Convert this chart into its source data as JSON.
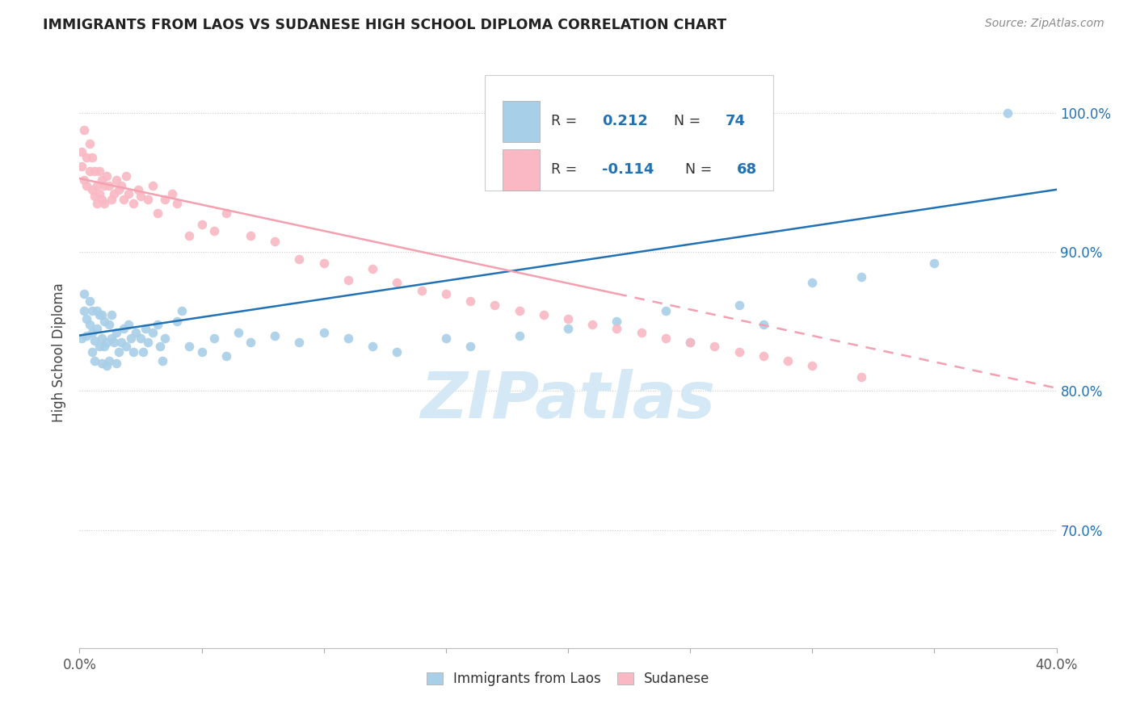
{
  "title": "IMMIGRANTS FROM LAOS VS SUDANESE HIGH SCHOOL DIPLOMA CORRELATION CHART",
  "source": "Source: ZipAtlas.com",
  "ylabel": "High School Diploma",
  "ytick_labels": [
    "70.0%",
    "80.0%",
    "90.0%",
    "100.0%"
  ],
  "ytick_values": [
    0.7,
    0.8,
    0.9,
    1.0
  ],
  "xlim": [
    0.0,
    0.4
  ],
  "ylim": [
    0.615,
    1.04
  ],
  "blue_R": 0.212,
  "blue_N": 74,
  "pink_R": -0.114,
  "pink_N": 68,
  "blue_color": "#a8cfe8",
  "pink_color": "#f9b8c4",
  "blue_line_color": "#2171b5",
  "pink_line_color": "#f4a0b0",
  "legend_text_color": "#2171b5",
  "title_color": "#222222",
  "source_color": "#888888",
  "watermark_color": "#d5e8f5",
  "blue_line_y0": 0.84,
  "blue_line_y1": 0.945,
  "pink_line_y0": 0.953,
  "pink_line_y1_solid": 0.87,
  "pink_line_x_solid_end": 0.22,
  "pink_line_y1_dash": 0.8,
  "blue_x": [
    0.001,
    0.002,
    0.002,
    0.003,
    0.003,
    0.004,
    0.004,
    0.005,
    0.005,
    0.005,
    0.006,
    0.006,
    0.007,
    0.007,
    0.008,
    0.008,
    0.009,
    0.009,
    0.009,
    0.01,
    0.01,
    0.011,
    0.011,
    0.012,
    0.012,
    0.013,
    0.013,
    0.014,
    0.015,
    0.015,
    0.016,
    0.017,
    0.018,
    0.019,
    0.02,
    0.021,
    0.022,
    0.023,
    0.025,
    0.026,
    0.027,
    0.028,
    0.03,
    0.032,
    0.033,
    0.034,
    0.035,
    0.04,
    0.042,
    0.045,
    0.05,
    0.055,
    0.06,
    0.065,
    0.07,
    0.08,
    0.09,
    0.1,
    0.11,
    0.12,
    0.13,
    0.15,
    0.16,
    0.18,
    0.2,
    0.22,
    0.24,
    0.25,
    0.27,
    0.28,
    0.3,
    0.32,
    0.35,
    0.38
  ],
  "blue_y": [
    0.838,
    0.87,
    0.858,
    0.84,
    0.852,
    0.865,
    0.848,
    0.828,
    0.842,
    0.858,
    0.822,
    0.836,
    0.845,
    0.858,
    0.855,
    0.832,
    0.82,
    0.838,
    0.855,
    0.832,
    0.85,
    0.818,
    0.835,
    0.848,
    0.822,
    0.838,
    0.855,
    0.835,
    0.82,
    0.842,
    0.828,
    0.835,
    0.845,
    0.832,
    0.848,
    0.838,
    0.828,
    0.842,
    0.838,
    0.828,
    0.845,
    0.835,
    0.842,
    0.848,
    0.832,
    0.822,
    0.838,
    0.85,
    0.858,
    0.832,
    0.828,
    0.838,
    0.825,
    0.842,
    0.835,
    0.84,
    0.835,
    0.842,
    0.838,
    0.832,
    0.828,
    0.838,
    0.832,
    0.84,
    0.845,
    0.85,
    0.858,
    0.835,
    0.862,
    0.848,
    0.878,
    0.882,
    0.892,
    1.0
  ],
  "pink_x": [
    0.001,
    0.001,
    0.002,
    0.002,
    0.003,
    0.003,
    0.004,
    0.004,
    0.005,
    0.005,
    0.006,
    0.006,
    0.007,
    0.007,
    0.008,
    0.008,
    0.009,
    0.009,
    0.01,
    0.01,
    0.011,
    0.012,
    0.013,
    0.014,
    0.015,
    0.016,
    0.017,
    0.018,
    0.019,
    0.02,
    0.022,
    0.024,
    0.025,
    0.028,
    0.03,
    0.032,
    0.035,
    0.038,
    0.04,
    0.045,
    0.05,
    0.055,
    0.06,
    0.07,
    0.08,
    0.09,
    0.1,
    0.11,
    0.12,
    0.13,
    0.14,
    0.15,
    0.16,
    0.17,
    0.18,
    0.19,
    0.2,
    0.21,
    0.22,
    0.23,
    0.24,
    0.25,
    0.26,
    0.27,
    0.28,
    0.29,
    0.3,
    0.32
  ],
  "pink_y": [
    0.972,
    0.962,
    0.988,
    0.952,
    0.968,
    0.948,
    0.978,
    0.958,
    0.945,
    0.968,
    0.94,
    0.958,
    0.948,
    0.935,
    0.958,
    0.942,
    0.952,
    0.938,
    0.948,
    0.935,
    0.955,
    0.948,
    0.938,
    0.942,
    0.952,
    0.945,
    0.948,
    0.938,
    0.955,
    0.942,
    0.935,
    0.945,
    0.94,
    0.938,
    0.948,
    0.928,
    0.938,
    0.942,
    0.935,
    0.912,
    0.92,
    0.915,
    0.928,
    0.912,
    0.908,
    0.895,
    0.892,
    0.88,
    0.888,
    0.878,
    0.872,
    0.87,
    0.865,
    0.862,
    0.858,
    0.855,
    0.852,
    0.848,
    0.845,
    0.842,
    0.838,
    0.835,
    0.832,
    0.828,
    0.825,
    0.822,
    0.818,
    0.81
  ]
}
